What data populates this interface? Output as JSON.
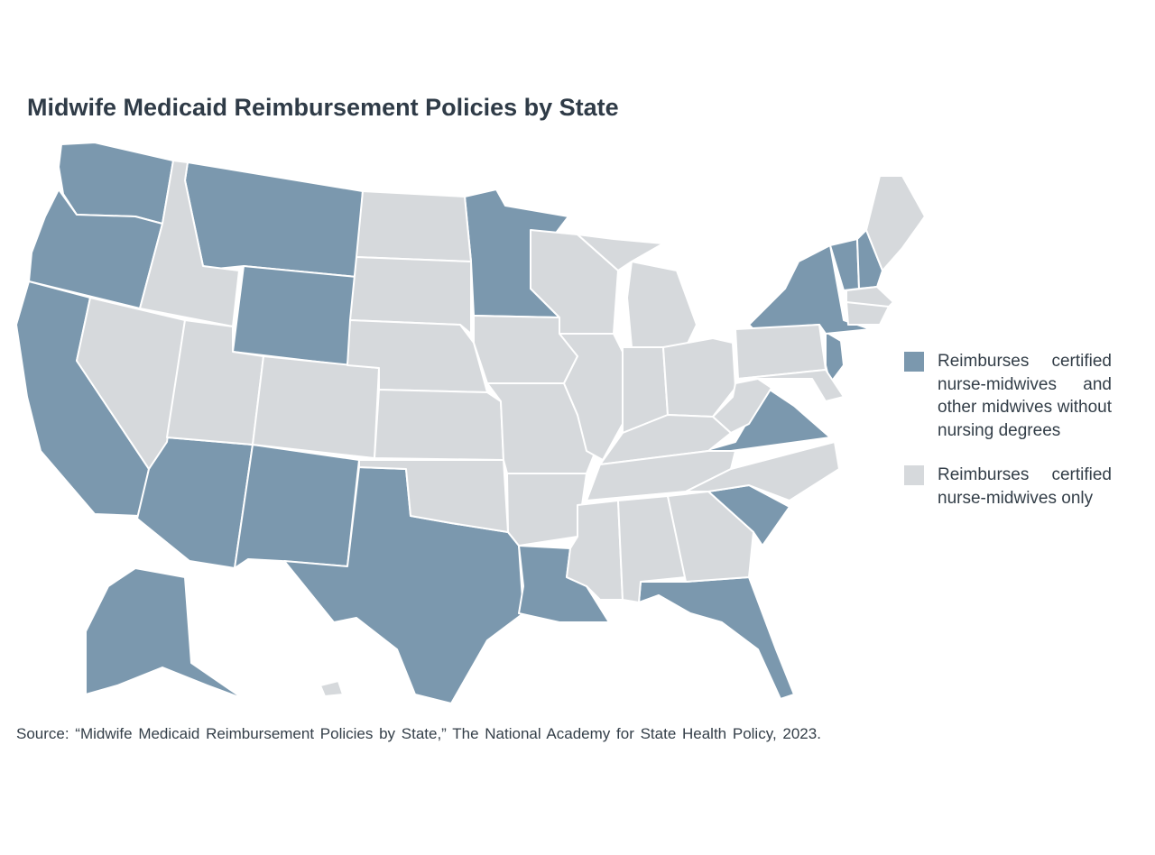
{
  "title": "Midwife Medicaid Reimbursement Policies by State",
  "legend": [
    {
      "label": "Reimburses certified nurse-midwives and other midwives without nursing degrees",
      "color": "#7b98ae"
    },
    {
      "label": "Reimburses certified nurse-midwives only",
      "color": "#d6d9dc"
    }
  ],
  "source": "Source: “Midwife Medicaid Reimbursement Policies by State,” The National Academy for State Health Policy, 2023."
}
